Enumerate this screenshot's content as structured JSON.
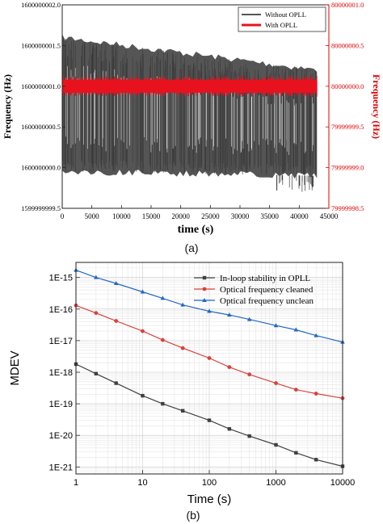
{
  "captions": {
    "a": "(a)",
    "b": "(b)"
  },
  "colors": {
    "gray": "#555555",
    "red": "#e8121f",
    "axis_red": "#e00000",
    "c1": "#404040",
    "c2": "#d8423b",
    "c3": "#2367c4"
  },
  "chart_data": [
    {
      "type": "line",
      "xlabel": "time (s)",
      "ylabel": "Frequency (Hz)",
      "ylabel_right": "Frequency (Hz)",
      "xlim": [
        0,
        45000
      ],
      "ylim": [
        1599999999.5,
        1600000002.0
      ],
      "ylim_right": [
        79999998.5,
        80000001.0
      ],
      "x_ticks": [
        "0",
        "5000",
        "10000",
        "15000",
        "20000",
        "25000",
        "30000",
        "35000",
        "40000",
        "45000"
      ],
      "y_ticks": [
        "1599999999.5",
        "1600000000.0",
        "1600000000.5",
        "1600000001.0",
        "1600000001.5",
        "1600000002.0"
      ],
      "y_ticks_right": [
        "79999998.5",
        "79999999.0",
        "79999999.5",
        "80000000.0",
        "80000000.5",
        "80000001.0"
      ],
      "legend_position": "top-right",
      "series": [
        {
          "name": "Without OPLL",
          "axis": "left",
          "x": [
            0,
            43000
          ],
          "band_top": [
            1600000001.6,
            1600000001.2
          ],
          "band_bottom": [
            1599999999.95,
            1599999999.9
          ],
          "y_min": 1599999999.7,
          "y_max": 1600000001.6
        },
        {
          "name": "With OPLL",
          "axis": "right",
          "x": [
            0,
            43000
          ],
          "center": 80000000.0,
          "half_width": 0.08
        }
      ]
    },
    {
      "type": "line",
      "xlabel": "Time (s)",
      "ylabel": "MDEV",
      "x_scale": "log",
      "y_scale": "log",
      "xlim": [
        1,
        10000
      ],
      "ylim": [
        6e-22,
        3e-15
      ],
      "x_ticks": [
        "1",
        "10",
        "100",
        "1000",
        "10000"
      ],
      "y_ticks": [
        "1E-21",
        "1E-20",
        "1E-19",
        "1E-18",
        "1E-17",
        "1E-16",
        "1E-15"
      ],
      "legend_position": "top-right",
      "grid": true,
      "x": [
        1,
        2,
        4,
        10,
        20,
        40,
        100,
        200,
        400,
        1000,
        2000,
        4000,
        10000
      ],
      "series": [
        {
          "name": "In-loop stability in OPLL",
          "marker": "square",
          "values": [
            1.8e-18,
            9e-19,
            4.5e-19,
            1.8e-19,
            1e-19,
            6e-20,
            3e-20,
            1.6e-20,
            9.5e-21,
            5e-21,
            2.8e-21,
            1.7e-21,
            1.05e-21
          ]
        },
        {
          "name": "Optical frequency cleaned",
          "marker": "circle",
          "values": [
            1.3e-16,
            7.5e-17,
            4.2e-17,
            2e-17,
            1.05e-17,
            5.8e-18,
            2.8e-18,
            1.45e-18,
            8.5e-19,
            4.5e-19,
            2.8e-19,
            2.1e-19,
            1.5e-19
          ]
        },
        {
          "name": "Optical frequency unclean",
          "marker": "triangle",
          "values": [
            1.7e-15,
            1e-15,
            6.5e-16,
            3.5e-16,
            2.2e-16,
            1.35e-16,
            8.5e-17,
            6.5e-17,
            4.7e-17,
            3e-17,
            2.2e-17,
            1.45e-17,
            9e-18
          ]
        }
      ]
    }
  ]
}
